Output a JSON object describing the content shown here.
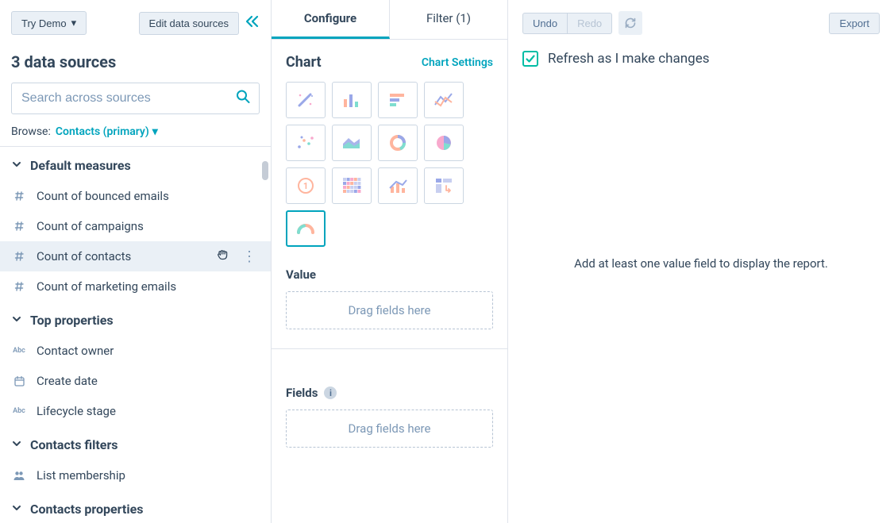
{
  "colors": {
    "primary": "#00a4bd",
    "teal": "#00bda5",
    "text": "#33475b",
    "muted": "#7c98b6",
    "border": "#cbd6e2",
    "panel_bg": "#eaf0f6",
    "orange": "#ff7a59",
    "purple": "#6a78d1"
  },
  "left": {
    "try_demo": "Try Demo",
    "edit_sources": "Edit data sources",
    "heading": "3 data sources",
    "search_placeholder": "Search across sources",
    "browse_label": "Browse:",
    "browse_value": "Contacts (primary)",
    "sections": {
      "default_measures": {
        "title": "Default measures",
        "items": [
          {
            "icon": "hash",
            "label": "Count of bounced emails"
          },
          {
            "icon": "hash",
            "label": "Count of campaigns"
          },
          {
            "icon": "hash",
            "label": "Count of contacts",
            "hover": true
          },
          {
            "icon": "hash",
            "label": "Count of marketing emails"
          }
        ]
      },
      "top_properties": {
        "title": "Top properties",
        "items": [
          {
            "icon": "abc",
            "label": "Contact owner"
          },
          {
            "icon": "calendar",
            "label": "Create date"
          },
          {
            "icon": "abc",
            "label": "Lifecycle stage"
          }
        ]
      },
      "contacts_filters": {
        "title": "Contacts filters",
        "items": [
          {
            "icon": "people",
            "label": "List membership"
          }
        ]
      },
      "contacts_properties": {
        "title": "Contacts properties"
      }
    }
  },
  "mid": {
    "tabs": {
      "configure": "Configure",
      "filter": "Filter (1)"
    },
    "chart_title": "Chart",
    "chart_settings": "Chart Settings",
    "chart_types": [
      {
        "name": "magic"
      },
      {
        "name": "bar"
      },
      {
        "name": "hbar"
      },
      {
        "name": "line"
      },
      {
        "name": "scatter"
      },
      {
        "name": "area"
      },
      {
        "name": "donut"
      },
      {
        "name": "pie"
      },
      {
        "name": "kpi"
      },
      {
        "name": "heatmap"
      },
      {
        "name": "combo"
      },
      {
        "name": "pivot"
      },
      {
        "name": "gauge",
        "selected": true
      }
    ],
    "value_title": "Value",
    "drag_hint": "Drag fields here",
    "fields_title": "Fields"
  },
  "right": {
    "undo": "Undo",
    "redo": "Redo",
    "export": "Export",
    "refresh_label": "Refresh as I make changes",
    "refresh_checked": true,
    "empty_msg": "Add at least one value field to display the report."
  }
}
